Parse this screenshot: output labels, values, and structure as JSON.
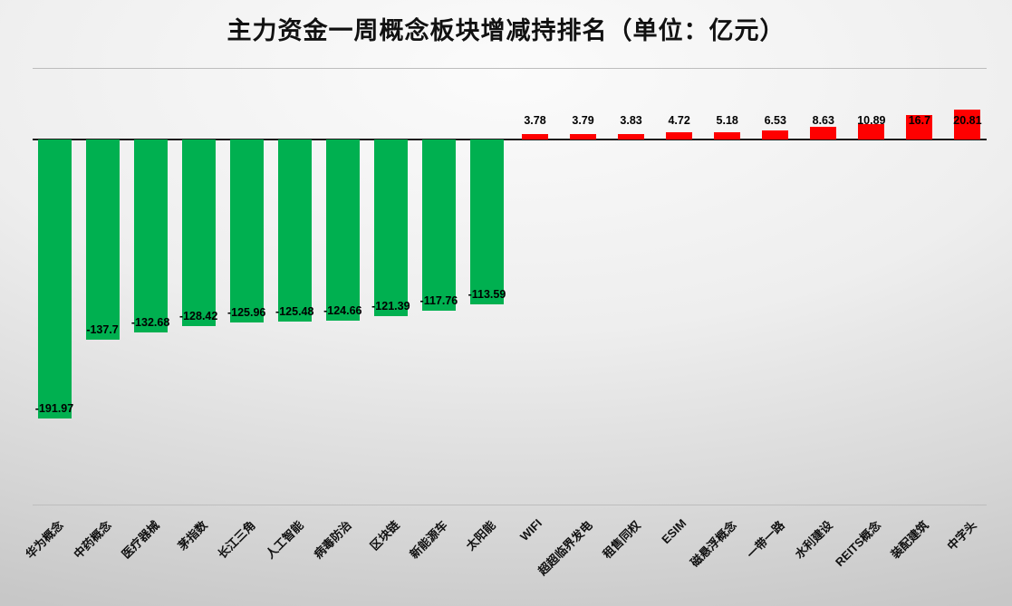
{
  "title": "主力资金一周概念板块增减持排名（单位：亿元）",
  "chart_data": {
    "type": "bar",
    "title": "主力资金一周概念板块增减持排名（单位：亿元）",
    "unit": "亿元",
    "xlabel": "",
    "ylabel": "",
    "legend": "none",
    "grid": "off",
    "baseline": 0,
    "ylim": [
      -200,
      30
    ],
    "negative_color": "#00B050",
    "positive_color": "#FF0000",
    "categories": [
      "华为概念",
      "中药概念",
      "医疗器械",
      "茅指数",
      "长江三角",
      "人工智能",
      "病毒防治",
      "区块链",
      "新能源车",
      "太阳能",
      "WIFI",
      "超超临界发电",
      "租售同权",
      "ESIM",
      "磁悬浮概念",
      "一带一路",
      "水利建设",
      "REITS概念",
      "装配建筑",
      "中字头"
    ],
    "values": [
      -191.97,
      -137.7,
      -132.68,
      -128.42,
      -125.96,
      -125.48,
      -124.66,
      -121.39,
      -117.76,
      -113.59,
      3.78,
      3.79,
      3.83,
      4.72,
      5.18,
      6.53,
      8.63,
      10.89,
      16.7,
      20.81
    ],
    "value_labels": [
      "-191.97",
      "-137.7",
      "-132.68",
      "-128.42",
      "-125.96",
      "-125.48",
      "-124.66",
      "-121.39",
      "-117.76",
      "-113.59",
      "3.78",
      "3.79",
      "3.83",
      "4.72",
      "5.18",
      "6.53",
      "8.63",
      "10.89",
      "16.7",
      "20.81"
    ]
  }
}
